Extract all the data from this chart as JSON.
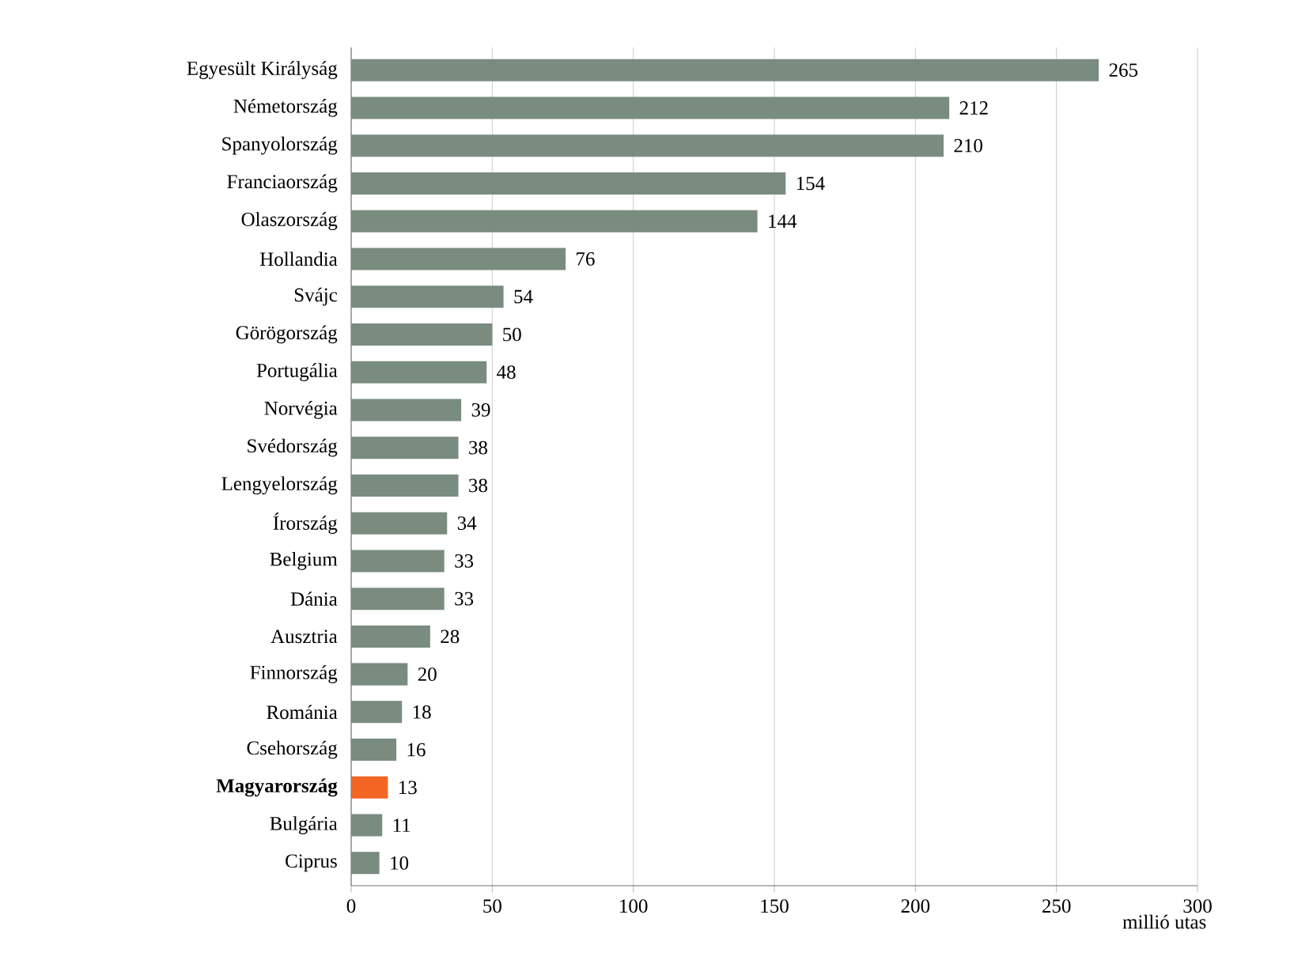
{
  "chart_data": {
    "type": "bar",
    "orientation": "horizontal",
    "categories": [
      "Egyesült Királyság",
      "Németország",
      "Spanyolország",
      "Franciaország",
      "Olaszország",
      "Hollandia",
      "Svájc",
      "Görögország",
      "Portugália",
      "Norvégia",
      "Svédország",
      "Lengyelország",
      "Írország",
      "Belgium",
      "Dánia",
      "Ausztria",
      "Finnország",
      "Románia",
      "Csehország",
      "**Magyarország**",
      "Bulgária",
      "Ciprus"
    ],
    "values": [
      265,
      212,
      210,
      154,
      144,
      76,
      54,
      50,
      48,
      39,
      38,
      38,
      34,
      33,
      33,
      28,
      20,
      18,
      16,
      13,
      11,
      10
    ],
    "colors": [
      "#7a8b7f",
      "#7a8b7f",
      "#7a8b7f",
      "#7a8b7f",
      "#7a8b7f",
      "#7a8b7f",
      "#7a8b7f",
      "#7a8b7f",
      "#7a8b7f",
      "#7a8b7f",
      "#7a8b7f",
      "#7a8b7f",
      "#7a8b7f",
      "#7a8b7f",
      "#7a8b7f",
      "#7a8b7f",
      "#7a8b7f",
      "#7a8b7f",
      "#7a8b7f",
      "#f26522",
      "#7a8b7f",
      "#7a8b7f"
    ],
    "xlim": [
      0,
      300
    ],
    "xticks": [
      0,
      50,
      100,
      150,
      200,
      250,
      300
    ],
    "xlabel": "millió utas",
    "grid": "x",
    "data_labels": true
  }
}
